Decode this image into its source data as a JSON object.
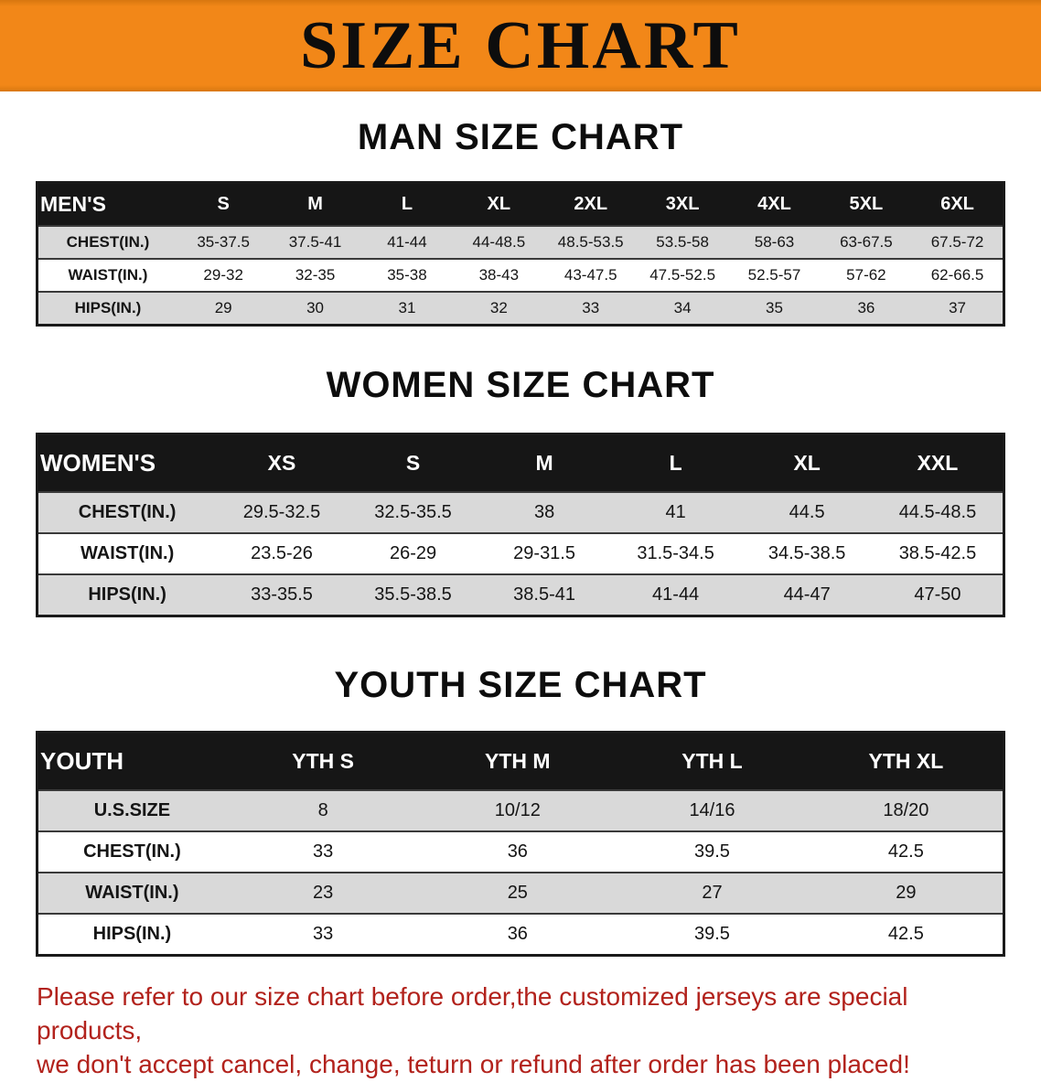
{
  "banner": {
    "title": "SIZE CHART"
  },
  "colors": {
    "banner-bg": "#f28718",
    "stripe": "#d9d9d9",
    "disclaimer-color": "#b2221c"
  },
  "chart_data": [
    {
      "type": "table",
      "id": "men",
      "title": "MAN SIZE CHART",
      "corner_label": "MEN'S",
      "columns": [
        "S",
        "M",
        "L",
        "XL",
        "2XL",
        "3XL",
        "4XL",
        "5XL",
        "6XL"
      ],
      "rows": [
        {
          "label": "CHEST(IN.)",
          "values": [
            "35-37.5",
            "37.5-41",
            "41-44",
            "44-48.5",
            "48.5-53.5",
            "53.5-58",
            "58-63",
            "63-67.5",
            "67.5-72"
          ]
        },
        {
          "label": "WAIST(IN.)",
          "values": [
            "29-32",
            "32-35",
            "35-38",
            "38-43",
            "43-47.5",
            "47.5-52.5",
            "52.5-57",
            "57-62",
            "62-66.5"
          ]
        },
        {
          "label": "HIPS(IN.)",
          "values": [
            "29",
            "30",
            "31",
            "32",
            "33",
            "34",
            "35",
            "36",
            "37"
          ]
        }
      ]
    },
    {
      "type": "table",
      "id": "women",
      "title": "WOMEN SIZE CHART",
      "corner_label": "WOMEN'S",
      "columns": [
        "XS",
        "S",
        "M",
        "L",
        "XL",
        "XXL"
      ],
      "rows": [
        {
          "label": "CHEST(IN.)",
          "values": [
            "29.5-32.5",
            "32.5-35.5",
            "38",
            "41",
            "44.5",
            "44.5-48.5"
          ]
        },
        {
          "label": "WAIST(IN.)",
          "values": [
            "23.5-26",
            "26-29",
            "29-31.5",
            "31.5-34.5",
            "34.5-38.5",
            "38.5-42.5"
          ]
        },
        {
          "label": "HIPS(IN.)",
          "values": [
            "33-35.5",
            "35.5-38.5",
            "38.5-41",
            "41-44",
            "44-47",
            "47-50"
          ]
        }
      ]
    },
    {
      "type": "table",
      "id": "youth",
      "title": "YOUTH SIZE CHART",
      "corner_label": "YOUTH",
      "columns": [
        "YTH S",
        "YTH M",
        "YTH L",
        "YTH XL"
      ],
      "rows": [
        {
          "label": "U.S.SIZE",
          "values": [
            "8",
            "10/12",
            "14/16",
            "18/20"
          ]
        },
        {
          "label": "CHEST(IN.)",
          "values": [
            "33",
            "36",
            "39.5",
            "42.5"
          ]
        },
        {
          "label": "WAIST(IN.)",
          "values": [
            "23",
            "25",
            "27",
            "29"
          ]
        },
        {
          "label": "HIPS(IN.)",
          "values": [
            "33",
            "36",
            "39.5",
            "42.5"
          ]
        }
      ]
    }
  ],
  "disclaimer": {
    "lines": [
      "Please refer to our size chart before order,the customized jerseys are special products,",
      "we don't accept cancel, change, teturn or refund after order has been placed!"
    ]
  }
}
